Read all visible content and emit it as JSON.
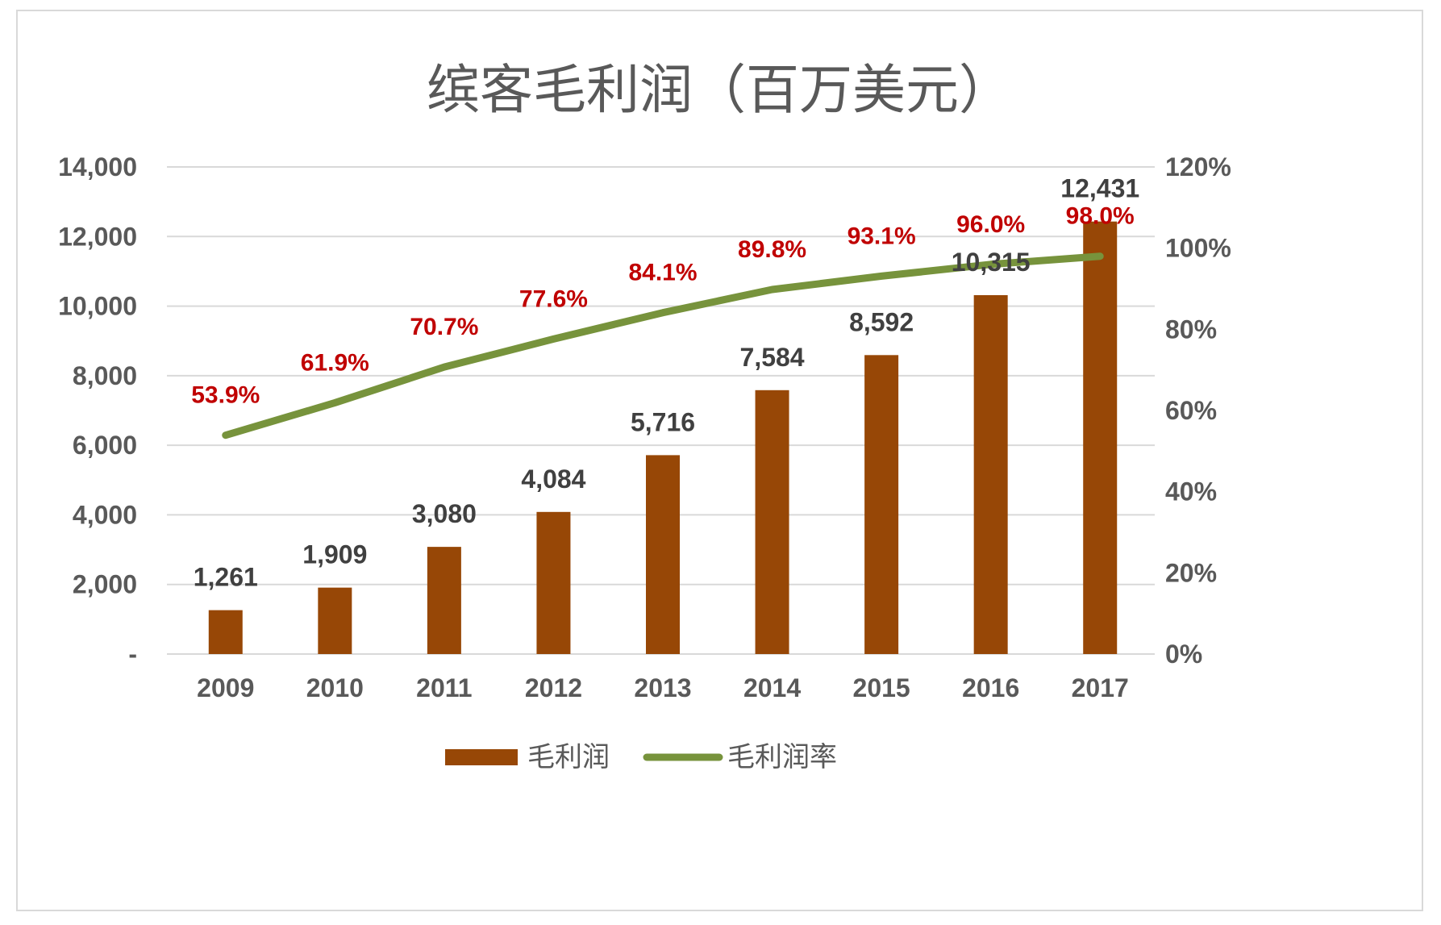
{
  "chart_data": {
    "type": "bar",
    "title": "缤客毛利润（百万美元）",
    "categories": [
      "2009",
      "2010",
      "2011",
      "2012",
      "2013",
      "2014",
      "2015",
      "2016",
      "2017"
    ],
    "series": [
      {
        "name": "毛利润",
        "type": "bar",
        "axis": "left",
        "color": "#974706",
        "values": [
          1261,
          1909,
          3080,
          4084,
          5716,
          7584,
          8592,
          10315,
          12431
        ],
        "labels": [
          "1,261",
          "1,909",
          "3,080",
          "4,084",
          "5,716",
          "7,584",
          "8,592",
          "10,315",
          "12,431"
        ],
        "label_color": "#404040"
      },
      {
        "name": "毛利润率",
        "type": "line",
        "axis": "right",
        "color": "#77933c",
        "values": [
          53.9,
          61.9,
          70.7,
          77.6,
          84.1,
          89.8,
          93.1,
          96.0,
          98.0
        ],
        "labels": [
          "53.9%",
          "61.9%",
          "70.7%",
          "77.6%",
          "84.1%",
          "89.8%",
          "93.1%",
          "96.0%",
          "98.0%"
        ],
        "label_color": "#c00000"
      }
    ],
    "y_left": {
      "range": [
        0,
        14000
      ],
      "tick_values": [
        0,
        2000,
        4000,
        6000,
        8000,
        10000,
        12000,
        14000
      ],
      "tick_labels": [
        "-",
        "2,000",
        "4,000",
        "6,000",
        "8,000",
        "10,000",
        "12,000",
        "14,000"
      ]
    },
    "y_right": {
      "range": [
        0,
        120
      ],
      "tick_values": [
        0,
        20,
        40,
        60,
        80,
        100,
        120
      ],
      "tick_labels": [
        "0%",
        "20%",
        "40%",
        "60%",
        "80%",
        "100%",
        "120%"
      ]
    },
    "xlabel": "",
    "ylabel": "",
    "grid": true,
    "legend_position": "bottom",
    "colors": {
      "text": "#595959",
      "grid": "#d9d9d9"
    }
  }
}
